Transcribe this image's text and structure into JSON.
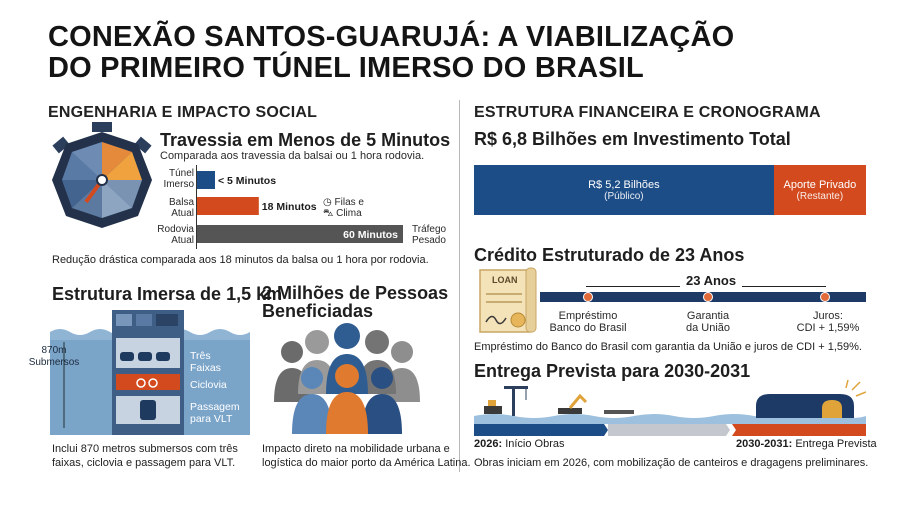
{
  "title_line1": "CONEXÃO SANTOS-GUARUJÁ: A VIABILIZAÇÃO",
  "title_line2": "DO PRIMEIRO TÚNEL IMERSO DO BRASIL",
  "left": {
    "section_title": "ENGENHARIA E IMPACTO SOCIAL",
    "travessia": {
      "heading": "Travessia em Menos de 5 Minutos",
      "subheading": "Comparada aos travessia da balsai ou 1 hora rodovia.",
      "bars": [
        {
          "label1": "Túnel",
          "label2": "Imerso",
          "value_label": "< 5 Minutos",
          "minutes": 5,
          "color": "#1d4d86"
        },
        {
          "label1": "Balsa",
          "label2": "Atual",
          "value_label": "18 Minutos",
          "minutes": 18,
          "color": "#d24a1e",
          "note1": "Filas e",
          "note2": "Clima"
        },
        {
          "label1": "Rodovia",
          "label2": "Atual",
          "value_label": "60 Minutos",
          "minutes": 60,
          "color": "#555555",
          "note1": "Tráfego",
          "note2": "Pesado"
        }
      ],
      "caption": "Redução drástica comparada aos 18 minutos da balsa ou 1 hora por rodovia."
    },
    "estrutura": {
      "heading": "Estrutura Imersa de 1,5 km",
      "depth_label1": "870m",
      "depth_label2": "Submersos",
      "lanes": [
        "Três",
        "Faixas"
      ],
      "ciclovia": "Ciclovia",
      "vlt": [
        "Passagem",
        "para VLT"
      ],
      "caption1": "Inclui 870 metros submersos com três",
      "caption2": "faixas, ciclovia e passagem para VLT."
    },
    "pessoas": {
      "heading1": "2 Milhões de Pessoas",
      "heading2": "Beneficiadas",
      "caption1": "Impacto direto na mobilidade urbana e",
      "caption2": "logística do maior porto da América Latina."
    }
  },
  "right": {
    "section_title": "ESTRUTURA FINANCEIRA E CRONOGRAMA",
    "investimento": {
      "heading": "R$ 6,8 Bilhões em Investimento Total",
      "public_label": "R$ 5,2 Bilhões",
      "public_sub": "(Público)",
      "public_value": 5.2,
      "private_label": "Aporte Privado",
      "private_sub": "(Restante)",
      "private_value": 1.6
    },
    "credito": {
      "heading": "Crédito Estruturado de 23 Anos",
      "loan_tag": "LOAN",
      "years_label": "23 Anos",
      "points": [
        {
          "l1": "Empréstimo",
          "l2": "Banco do Brasil"
        },
        {
          "l1": "Garantia",
          "l2": "da União"
        },
        {
          "l1": "Juros:",
          "l2": "CDI + 1,59%"
        }
      ],
      "caption": "Empréstimo do Banco do Brasil com garantia da União e juros de CDI + 1,59%."
    },
    "entrega": {
      "heading": "Entrega Prevista para 2030-2031",
      "start_year": "2026:",
      "start_label": " Início Obras",
      "end_year": "2030-2031:",
      "end_label": " Entrega Prevista",
      "caption": "Obras iniciam em 2026, com mobilização de canteiros e dragagens preliminares."
    }
  },
  "colors": {
    "navy": "#1d4d86",
    "orange": "#d24a1e",
    "gray": "#555555"
  }
}
